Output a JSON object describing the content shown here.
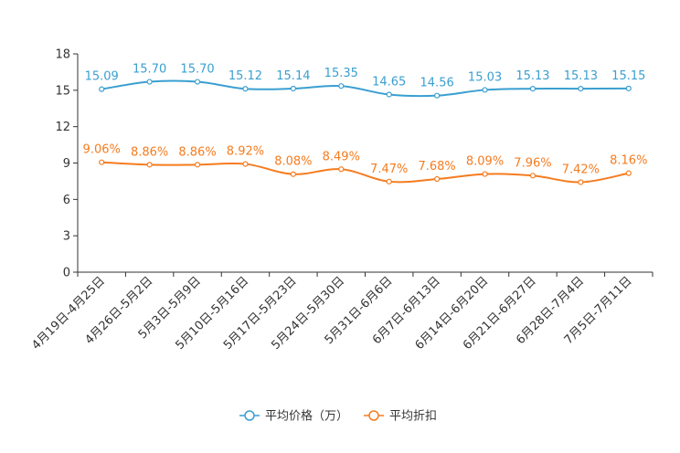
{
  "chart_data": {
    "type": "line",
    "categories": [
      "4月19日-4月25日",
      "4月26日-5月2日",
      "5月3日-5月9日",
      "5月10日-5月16日",
      "5月17日-5月23日",
      "5月24日-5月30日",
      "5月31日-6月6日",
      "6月7日-6月13日",
      "6月14日-6月20日",
      "6月21日-6月27日",
      "6月28日-7月4日",
      "7月5日-7月11日"
    ],
    "ylim": [
      0,
      18
    ],
    "yticks": [
      0,
      3,
      6,
      9,
      12,
      15,
      18
    ],
    "grid": false,
    "legend_position": "bottom-center",
    "series": [
      {
        "name": "平均价格（万）",
        "color": "#3a9fd0",
        "values": [
          15.09,
          15.7,
          15.7,
          15.12,
          15.14,
          15.35,
          14.65,
          14.56,
          15.03,
          15.13,
          15.13,
          15.15
        ],
        "labels": [
          "15.09",
          "15.70",
          "15.70",
          "15.12",
          "15.14",
          "15.35",
          "14.65",
          "14.56",
          "15.03",
          "15.13",
          "15.13",
          "15.15"
        ]
      },
      {
        "name": "平均折扣",
        "color": "#f57c1f",
        "values": [
          9.06,
          8.86,
          8.86,
          8.92,
          8.08,
          8.49,
          7.47,
          7.68,
          8.09,
          7.96,
          7.42,
          8.16
        ],
        "labels": [
          "9.06%",
          "8.86%",
          "8.86%",
          "8.92%",
          "8.08%",
          "8.49%",
          "7.47%",
          "7.68%",
          "8.09%",
          "7.96%",
          "7.42%",
          "8.16%"
        ]
      }
    ]
  }
}
